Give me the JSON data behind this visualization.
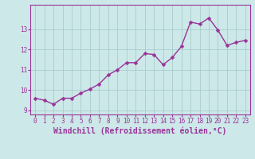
{
  "x": [
    0,
    1,
    2,
    3,
    4,
    5,
    6,
    7,
    8,
    9,
    10,
    11,
    12,
    13,
    14,
    15,
    16,
    17,
    18,
    19,
    20,
    21,
    22,
    23
  ],
  "y": [
    9.6,
    9.5,
    9.3,
    9.6,
    9.6,
    9.85,
    10.05,
    10.3,
    10.75,
    11.0,
    11.35,
    11.35,
    11.8,
    11.75,
    11.25,
    11.6,
    12.15,
    13.35,
    13.25,
    13.55,
    12.95,
    12.2,
    12.35,
    12.45
  ],
  "line_color": "#993399",
  "marker_color": "#993399",
  "bg_color": "#cce8e8",
  "grid_color": "#aacccc",
  "xlabel": "Windchill (Refroidissement éolien,°C)",
  "ylim": [
    8.8,
    14.2
  ],
  "xlim": [
    -0.5,
    23.5
  ],
  "yticks": [
    9,
    10,
    11,
    12,
    13
  ],
  "xticks": [
    0,
    1,
    2,
    3,
    4,
    5,
    6,
    7,
    8,
    9,
    10,
    11,
    12,
    13,
    14,
    15,
    16,
    17,
    18,
    19,
    20,
    21,
    22,
    23
  ],
  "tick_label_fontsize": 5.5,
  "xlabel_fontsize": 7.0,
  "line_width": 1.0,
  "marker_size": 2.5
}
